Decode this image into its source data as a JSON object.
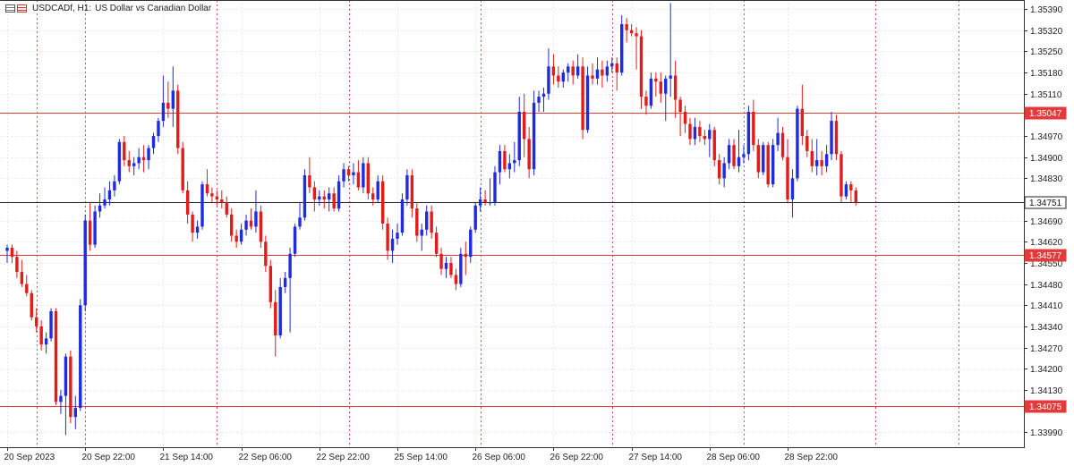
{
  "header": {
    "symbol_timeframe": "USDCADf, H1:",
    "description": "US Dollar vs Canadian Dollar"
  },
  "colors": {
    "bull": "#1f2be0",
    "bear": "#e21b1b",
    "hline": "#e33b3b",
    "current": "#202020",
    "grid": "#e9e9e9",
    "vsep": "#e05050",
    "axis": "#333333"
  },
  "chart_data": {
    "type": "candlestick",
    "ylim": [
      1.3394,
      1.3542
    ],
    "y_ticks": [
      "1.35390",
      "1.35320",
      "1.35250",
      "1.35180",
      "1.35110",
      "1.34970",
      "1.34900",
      "1.34830",
      "1.34690",
      "1.34620",
      "1.34550",
      "1.34480",
      "1.34410",
      "1.34340",
      "1.34270",
      "1.34200",
      "1.34130",
      "1.33990"
    ],
    "x_ticks": [
      "20 Sep 2023",
      "20 Sep 22:00",
      "21 Sep 14:00",
      "22 Sep 06:00",
      "22 Sep 22:00",
      "25 Sep 14:00",
      "26 Sep 06:00",
      "26 Sep 22:00",
      "27 Sep 14:00",
      "28 Sep 06:00",
      "28 Sep 22:00"
    ],
    "x_tick_bar_index": [
      0,
      16,
      32,
      48,
      64,
      80,
      96,
      112,
      128,
      144,
      160
    ],
    "separators_bar_index": [
      6,
      16,
      43,
      70,
      97,
      124,
      151,
      178,
      195
    ],
    "levels": [
      {
        "label": "1.35047",
        "value": 1.35047,
        "role": "resistance"
      },
      {
        "label": "1.34751",
        "value": 1.34751,
        "role": "current"
      },
      {
        "label": "1.34577",
        "value": 1.34577,
        "role": "support"
      },
      {
        "label": "1.34075",
        "value": 1.34075,
        "role": "support"
      }
    ],
    "bars": [
      {
        "t": "20 Sep 2023",
        "o": 1.3459,
        "h": 1.3461,
        "l": 1.3455,
        "c": 1.346
      },
      {
        "o": 1.346,
        "h": 1.3461,
        "l": 1.3455,
        "c": 1.3457
      },
      {
        "o": 1.3457,
        "h": 1.3459,
        "l": 1.345,
        "c": 1.3452
      },
      {
        "o": 1.3452,
        "h": 1.3456,
        "l": 1.3447,
        "c": 1.3448
      },
      {
        "o": 1.3448,
        "h": 1.3451,
        "l": 1.3444,
        "c": 1.3445
      },
      {
        "o": 1.3445,
        "h": 1.3446,
        "l": 1.3436,
        "c": 1.3437
      },
      {
        "o": 1.3437,
        "h": 1.344,
        "l": 1.3432,
        "c": 1.3434
      },
      {
        "o": 1.3434,
        "h": 1.3436,
        "l": 1.3426,
        "c": 1.3428
      },
      {
        "o": 1.3428,
        "h": 1.3432,
        "l": 1.3425,
        "c": 1.343
      },
      {
        "o": 1.343,
        "h": 1.344,
        "l": 1.3429,
        "c": 1.3439
      },
      {
        "o": 1.3439,
        "h": 1.344,
        "l": 1.3408,
        "c": 1.3409
      },
      {
        "o": 1.3409,
        "h": 1.3413,
        "l": 1.3405,
        "c": 1.3411
      },
      {
        "o": 1.3411,
        "h": 1.3425,
        "l": 1.3398,
        "c": 1.3424
      },
      {
        "o": 1.3424,
        "h": 1.3426,
        "l": 1.3402,
        "c": 1.3404
      },
      {
        "o": 1.3404,
        "h": 1.3411,
        "l": 1.34,
        "c": 1.3407
      },
      {
        "o": 1.3407,
        "h": 1.3443,
        "l": 1.3406,
        "c": 1.3441
      },
      {
        "t": "20 Sep 22:00",
        "o": 1.3441,
        "h": 1.3471,
        "l": 1.3439,
        "c": 1.3469
      },
      {
        "o": 1.3469,
        "h": 1.3475,
        "l": 1.3459,
        "c": 1.3461
      },
      {
        "o": 1.3461,
        "h": 1.3474,
        "l": 1.346,
        "c": 1.3472
      },
      {
        "o": 1.3472,
        "h": 1.3478,
        "l": 1.347,
        "c": 1.3474
      },
      {
        "o": 1.3474,
        "h": 1.348,
        "l": 1.3473,
        "c": 1.3476
      },
      {
        "o": 1.3476,
        "h": 1.3482,
        "l": 1.3474,
        "c": 1.3479
      },
      {
        "o": 1.3479,
        "h": 1.3484,
        "l": 1.3477,
        "c": 1.3482
      },
      {
        "o": 1.3482,
        "h": 1.3496,
        "l": 1.3481,
        "c": 1.3495
      },
      {
        "o": 1.3495,
        "h": 1.3497,
        "l": 1.3487,
        "c": 1.3489
      },
      {
        "o": 1.3489,
        "h": 1.3492,
        "l": 1.3485,
        "c": 1.3487
      },
      {
        "o": 1.3487,
        "h": 1.349,
        "l": 1.3484,
        "c": 1.3488
      },
      {
        "o": 1.3488,
        "h": 1.3493,
        "l": 1.3486,
        "c": 1.349
      },
      {
        "o": 1.349,
        "h": 1.3494,
        "l": 1.3485,
        "c": 1.3489
      },
      {
        "o": 1.3489,
        "h": 1.3494,
        "l": 1.3486,
        "c": 1.3493
      },
      {
        "o": 1.3493,
        "h": 1.3498,
        "l": 1.3491,
        "c": 1.3497
      },
      {
        "o": 1.3497,
        "h": 1.3503,
        "l": 1.3495,
        "c": 1.3502
      },
      {
        "t": "21 Sep 14:00",
        "o": 1.3502,
        "h": 1.3517,
        "l": 1.35,
        "c": 1.3508
      },
      {
        "o": 1.3508,
        "h": 1.3515,
        "l": 1.3503,
        "c": 1.3506
      },
      {
        "o": 1.3506,
        "h": 1.352,
        "l": 1.35,
        "c": 1.3512
      },
      {
        "o": 1.3512,
        "h": 1.3514,
        "l": 1.3491,
        "c": 1.3493
      },
      {
        "o": 1.3493,
        "h": 1.3495,
        "l": 1.3478,
        "c": 1.3479
      },
      {
        "o": 1.3479,
        "h": 1.3482,
        "l": 1.3468,
        "c": 1.3471
      },
      {
        "o": 1.3471,
        "h": 1.3472,
        "l": 1.3462,
        "c": 1.3465
      },
      {
        "o": 1.3465,
        "h": 1.3469,
        "l": 1.3463,
        "c": 1.3467
      },
      {
        "o": 1.3467,
        "h": 1.3482,
        "l": 1.3466,
        "c": 1.3481
      },
      {
        "o": 1.3481,
        "h": 1.3486,
        "l": 1.3477,
        "c": 1.3478
      },
      {
        "o": 1.3478,
        "h": 1.348,
        "l": 1.3475,
        "c": 1.3477
      },
      {
        "o": 1.3477,
        "h": 1.3479,
        "l": 1.3474,
        "c": 1.3476
      },
      {
        "o": 1.3476,
        "h": 1.3479,
        "l": 1.3473,
        "c": 1.3475
      },
      {
        "o": 1.3475,
        "h": 1.3477,
        "l": 1.347,
        "c": 1.3471
      },
      {
        "o": 1.3471,
        "h": 1.3473,
        "l": 1.3462,
        "c": 1.3464
      },
      {
        "o": 1.3464,
        "h": 1.3466,
        "l": 1.346,
        "c": 1.3462
      },
      {
        "t": "22 Sep 06:00",
        "o": 1.3462,
        "h": 1.3468,
        "l": 1.3461,
        "c": 1.3466
      },
      {
        "o": 1.3466,
        "h": 1.3471,
        "l": 1.3464,
        "c": 1.3469
      },
      {
        "o": 1.3469,
        "h": 1.3473,
        "l": 1.3466,
        "c": 1.3467
      },
      {
        "o": 1.3467,
        "h": 1.3479,
        "l": 1.3465,
        "c": 1.3472
      },
      {
        "o": 1.3472,
        "h": 1.3474,
        "l": 1.346,
        "c": 1.3462
      },
      {
        "o": 1.3462,
        "h": 1.3464,
        "l": 1.3452,
        "c": 1.3454
      },
      {
        "o": 1.3454,
        "h": 1.3456,
        "l": 1.344,
        "c": 1.3442
      },
      {
        "o": 1.3442,
        "h": 1.3446,
        "l": 1.3424,
        "c": 1.3431
      },
      {
        "o": 1.3431,
        "h": 1.345,
        "l": 1.343,
        "c": 1.3447
      },
      {
        "o": 1.3447,
        "h": 1.3452,
        "l": 1.3445,
        "c": 1.345
      },
      {
        "o": 1.345,
        "h": 1.346,
        "l": 1.3432,
        "c": 1.3458
      },
      {
        "o": 1.3458,
        "h": 1.3468,
        "l": 1.3457,
        "c": 1.3467
      },
      {
        "o": 1.3467,
        "h": 1.3475,
        "l": 1.3466,
        "c": 1.347
      },
      {
        "o": 1.347,
        "h": 1.3486,
        "l": 1.3469,
        "c": 1.3484
      },
      {
        "o": 1.3484,
        "h": 1.349,
        "l": 1.3478,
        "c": 1.348
      },
      {
        "o": 1.348,
        "h": 1.3482,
        "l": 1.3472,
        "c": 1.3476
      },
      {
        "t": "22 Sep 22:00",
        "o": 1.3476,
        "h": 1.3479,
        "l": 1.3474,
        "c": 1.3477
      },
      {
        "o": 1.3477,
        "h": 1.3479,
        "l": 1.3473,
        "c": 1.3476
      },
      {
        "o": 1.3476,
        "h": 1.348,
        "l": 1.3472,
        "c": 1.3478
      },
      {
        "o": 1.3478,
        "h": 1.348,
        "l": 1.3472,
        "c": 1.3473
      },
      {
        "o": 1.3473,
        "h": 1.3484,
        "l": 1.3472,
        "c": 1.3482
      },
      {
        "o": 1.3482,
        "h": 1.3488,
        "l": 1.348,
        "c": 1.3486
      },
      {
        "o": 1.3486,
        "h": 1.3487,
        "l": 1.3482,
        "c": 1.3484
      },
      {
        "o": 1.3484,
        "h": 1.3488,
        "l": 1.3481,
        "c": 1.3485
      },
      {
        "o": 1.3485,
        "h": 1.3489,
        "l": 1.3479,
        "c": 1.348
      },
      {
        "o": 1.348,
        "h": 1.349,
        "l": 1.3478,
        "c": 1.3488
      },
      {
        "o": 1.3488,
        "h": 1.349,
        "l": 1.3476,
        "c": 1.3478
      },
      {
        "o": 1.3478,
        "h": 1.348,
        "l": 1.3474,
        "c": 1.3476
      },
      {
        "o": 1.3476,
        "h": 1.3484,
        "l": 1.3475,
        "c": 1.3482
      },
      {
        "o": 1.3482,
        "h": 1.3484,
        "l": 1.3466,
        "c": 1.3468
      },
      {
        "o": 1.3468,
        "h": 1.347,
        "l": 1.3456,
        "c": 1.3459
      },
      {
        "o": 1.3459,
        "h": 1.3466,
        "l": 1.3455,
        "c": 1.3463
      },
      {
        "t": "25 Sep 14:00",
        "o": 1.3463,
        "h": 1.3468,
        "l": 1.3461,
        "c": 1.3465
      },
      {
        "o": 1.3465,
        "h": 1.3478,
        "l": 1.3464,
        "c": 1.3476
      },
      {
        "o": 1.3476,
        "h": 1.3486,
        "l": 1.3474,
        "c": 1.3484
      },
      {
        "o": 1.3484,
        "h": 1.3486,
        "l": 1.347,
        "c": 1.3473
      },
      {
        "o": 1.3473,
        "h": 1.3475,
        "l": 1.3462,
        "c": 1.3464
      },
      {
        "o": 1.3464,
        "h": 1.3468,
        "l": 1.3459,
        "c": 1.3466
      },
      {
        "o": 1.3466,
        "h": 1.3474,
        "l": 1.3464,
        "c": 1.3472
      },
      {
        "o": 1.3472,
        "h": 1.3474,
        "l": 1.3463,
        "c": 1.3465
      },
      {
        "o": 1.3465,
        "h": 1.3467,
        "l": 1.3457,
        "c": 1.3458
      },
      {
        "o": 1.3458,
        "h": 1.346,
        "l": 1.3451,
        "c": 1.3453
      },
      {
        "o": 1.3453,
        "h": 1.3457,
        "l": 1.345,
        "c": 1.3455
      },
      {
        "o": 1.3455,
        "h": 1.3457,
        "l": 1.345,
        "c": 1.3451
      },
      {
        "o": 1.3451,
        "h": 1.3453,
        "l": 1.3446,
        "c": 1.3448
      },
      {
        "o": 1.3448,
        "h": 1.346,
        "l": 1.3447,
        "c": 1.3458
      },
      {
        "o": 1.3458,
        "h": 1.3462,
        "l": 1.3451,
        "c": 1.3457
      },
      {
        "o": 1.3457,
        "h": 1.3467,
        "l": 1.3455,
        "c": 1.3466
      },
      {
        "t": "26 Sep 06:00",
        "o": 1.3466,
        "h": 1.3475,
        "l": 1.3465,
        "c": 1.3474
      },
      {
        "o": 1.3474,
        "h": 1.348,
        "l": 1.3472,
        "c": 1.3476
      },
      {
        "o": 1.3476,
        "h": 1.3479,
        "l": 1.3474,
        "c": 1.3475
      },
      {
        "o": 1.3475,
        "h": 1.3483,
        "l": 1.3474,
        "c": 1.3475
      },
      {
        "o": 1.3475,
        "h": 1.3487,
        "l": 1.3474,
        "c": 1.3485
      },
      {
        "o": 1.3485,
        "h": 1.3494,
        "l": 1.3481,
        "c": 1.3492
      },
      {
        "o": 1.3492,
        "h": 1.3494,
        "l": 1.3485,
        "c": 1.3486
      },
      {
        "o": 1.3486,
        "h": 1.3491,
        "l": 1.3483,
        "c": 1.3488
      },
      {
        "o": 1.3488,
        "h": 1.3495,
        "l": 1.3485,
        "c": 1.3489
      },
      {
        "o": 1.3489,
        "h": 1.351,
        "l": 1.3487,
        "c": 1.3505
      },
      {
        "o": 1.3505,
        "h": 1.3511,
        "l": 1.349,
        "c": 1.3496
      },
      {
        "o": 1.3496,
        "h": 1.35,
        "l": 1.3483,
        "c": 1.3486
      },
      {
        "o": 1.3486,
        "h": 1.3512,
        "l": 1.3484,
        "c": 1.3508
      },
      {
        "o": 1.3508,
        "h": 1.3512,
        "l": 1.3505,
        "c": 1.351
      },
      {
        "o": 1.351,
        "h": 1.3513,
        "l": 1.3505,
        "c": 1.3511
      },
      {
        "o": 1.3511,
        "h": 1.3526,
        "l": 1.3509,
        "c": 1.352
      },
      {
        "t": "26 Sep 22:00",
        "o": 1.352,
        "h": 1.3524,
        "l": 1.3514,
        "c": 1.3517
      },
      {
        "o": 1.3517,
        "h": 1.352,
        "l": 1.3513,
        "c": 1.3515
      },
      {
        "o": 1.3515,
        "h": 1.3519,
        "l": 1.3513,
        "c": 1.3518
      },
      {
        "o": 1.3518,
        "h": 1.3521,
        "l": 1.3515,
        "c": 1.352
      },
      {
        "o": 1.352,
        "h": 1.3522,
        "l": 1.3514,
        "c": 1.3517
      },
      {
        "o": 1.3517,
        "h": 1.3524,
        "l": 1.3516,
        "c": 1.352
      },
      {
        "o": 1.352,
        "h": 1.3523,
        "l": 1.3496,
        "c": 1.3499
      },
      {
        "o": 1.3499,
        "h": 1.352,
        "l": 1.3498,
        "c": 1.3517
      },
      {
        "o": 1.3517,
        "h": 1.3521,
        "l": 1.3514,
        "c": 1.3516
      },
      {
        "o": 1.3516,
        "h": 1.3523,
        "l": 1.3514,
        "c": 1.3519
      },
      {
        "o": 1.3519,
        "h": 1.3522,
        "l": 1.3513,
        "c": 1.3517
      },
      {
        "o": 1.3517,
        "h": 1.3522,
        "l": 1.3515,
        "c": 1.352
      },
      {
        "o": 1.352,
        "h": 1.3523,
        "l": 1.3518,
        "c": 1.3521
      },
      {
        "o": 1.3521,
        "h": 1.3523,
        "l": 1.3512,
        "c": 1.3518
      },
      {
        "o": 1.3518,
        "h": 1.3537,
        "l": 1.3517,
        "c": 1.3534
      },
      {
        "o": 1.3534,
        "h": 1.3536,
        "l": 1.3528,
        "c": 1.3532
      },
      {
        "t": "27 Sep 14:00",
        "o": 1.3532,
        "h": 1.3534,
        "l": 1.353,
        "c": 1.3531
      },
      {
        "o": 1.3531,
        "h": 1.3533,
        "l": 1.3519,
        "c": 1.353
      },
      {
        "o": 1.353,
        "h": 1.3532,
        "l": 1.3506,
        "c": 1.351
      },
      {
        "o": 1.351,
        "h": 1.3512,
        "l": 1.3504,
        "c": 1.3507
      },
      {
        "o": 1.3507,
        "h": 1.3518,
        "l": 1.3506,
        "c": 1.3516
      },
      {
        "o": 1.3516,
        "h": 1.3518,
        "l": 1.351,
        "c": 1.3515
      },
      {
        "o": 1.3515,
        "h": 1.3518,
        "l": 1.3508,
        "c": 1.3511
      },
      {
        "o": 1.3511,
        "h": 1.3517,
        "l": 1.3502,
        "c": 1.3516
      },
      {
        "o": 1.3516,
        "h": 1.3541,
        "l": 1.351,
        "c": 1.3517
      },
      {
        "o": 1.3517,
        "h": 1.3522,
        "l": 1.3503,
        "c": 1.3509
      },
      {
        "o": 1.3509,
        "h": 1.351,
        "l": 1.3497,
        "c": 1.3505
      },
      {
        "o": 1.3505,
        "h": 1.3507,
        "l": 1.3498,
        "c": 1.3501
      },
      {
        "o": 1.3501,
        "h": 1.3503,
        "l": 1.3494,
        "c": 1.3496
      },
      {
        "o": 1.3496,
        "h": 1.3503,
        "l": 1.3494,
        "c": 1.35
      },
      {
        "o": 1.35,
        "h": 1.3502,
        "l": 1.3495,
        "c": 1.3497
      },
      {
        "o": 1.3497,
        "h": 1.3499,
        "l": 1.3494,
        "c": 1.3496
      },
      {
        "t": "28 Sep 06:00",
        "o": 1.3496,
        "h": 1.3501,
        "l": 1.349,
        "c": 1.3499
      },
      {
        "o": 1.3499,
        "h": 1.35,
        "l": 1.3487,
        "c": 1.3489
      },
      {
        "o": 1.3489,
        "h": 1.3491,
        "l": 1.3481,
        "c": 1.3483
      },
      {
        "o": 1.3483,
        "h": 1.349,
        "l": 1.348,
        "c": 1.3488
      },
      {
        "o": 1.3488,
        "h": 1.3496,
        "l": 1.3486,
        "c": 1.3494
      },
      {
        "o": 1.3494,
        "h": 1.3496,
        "l": 1.3486,
        "c": 1.3487
      },
      {
        "o": 1.3487,
        "h": 1.3499,
        "l": 1.3485,
        "c": 1.349
      },
      {
        "o": 1.349,
        "h": 1.3494,
        "l": 1.3488,
        "c": 1.3491
      },
      {
        "o": 1.3491,
        "h": 1.3507,
        "l": 1.3489,
        "c": 1.3505
      },
      {
        "o": 1.3505,
        "h": 1.3509,
        "l": 1.3492,
        "c": 1.3494
      },
      {
        "o": 1.3494,
        "h": 1.3496,
        "l": 1.3483,
        "c": 1.3485
      },
      {
        "o": 1.3485,
        "h": 1.3495,
        "l": 1.3484,
        "c": 1.3494
      },
      {
        "o": 1.3494,
        "h": 1.3495,
        "l": 1.348,
        "c": 1.3481
      },
      {
        "o": 1.3481,
        "h": 1.3496,
        "l": 1.348,
        "c": 1.3494
      },
      {
        "o": 1.3494,
        "h": 1.3503,
        "l": 1.3492,
        "c": 1.3498
      },
      {
        "o": 1.3498,
        "h": 1.35,
        "l": 1.3489,
        "c": 1.349
      },
      {
        "t": "28 Sep 22:00",
        "o": 1.349,
        "h": 1.3496,
        "l": 1.3475,
        "c": 1.3476
      },
      {
        "o": 1.3476,
        "h": 1.3486,
        "l": 1.347,
        "c": 1.3483
      },
      {
        "o": 1.3483,
        "h": 1.3507,
        "l": 1.3482,
        "c": 1.3506
      },
      {
        "o": 1.3506,
        "h": 1.3514,
        "l": 1.3494,
        "c": 1.3497
      },
      {
        "o": 1.3497,
        "h": 1.3499,
        "l": 1.349,
        "c": 1.3492
      },
      {
        "o": 1.3492,
        "h": 1.3496,
        "l": 1.3485,
        "c": 1.3487
      },
      {
        "o": 1.3487,
        "h": 1.3496,
        "l": 1.3484,
        "c": 1.3489
      },
      {
        "o": 1.3489,
        "h": 1.3492,
        "l": 1.3484,
        "c": 1.3487
      },
      {
        "o": 1.3487,
        "h": 1.3494,
        "l": 1.3485,
        "c": 1.3491
      },
      {
        "o": 1.3491,
        "h": 1.3505,
        "l": 1.3489,
        "c": 1.3502
      },
      {
        "o": 1.3502,
        "h": 1.3504,
        "l": 1.3489,
        "c": 1.3491
      },
      {
        "o": 1.3491,
        "h": 1.3492,
        "l": 1.3475,
        "c": 1.3477
      },
      {
        "o": 1.3477,
        "h": 1.3482,
        "l": 1.3476,
        "c": 1.3481
      },
      {
        "o": 1.3481,
        "h": 1.3482,
        "l": 1.3475,
        "c": 1.3479
      },
      {
        "o": 1.3479,
        "h": 1.348,
        "l": 1.3474,
        "c": 1.3475
      }
    ]
  }
}
